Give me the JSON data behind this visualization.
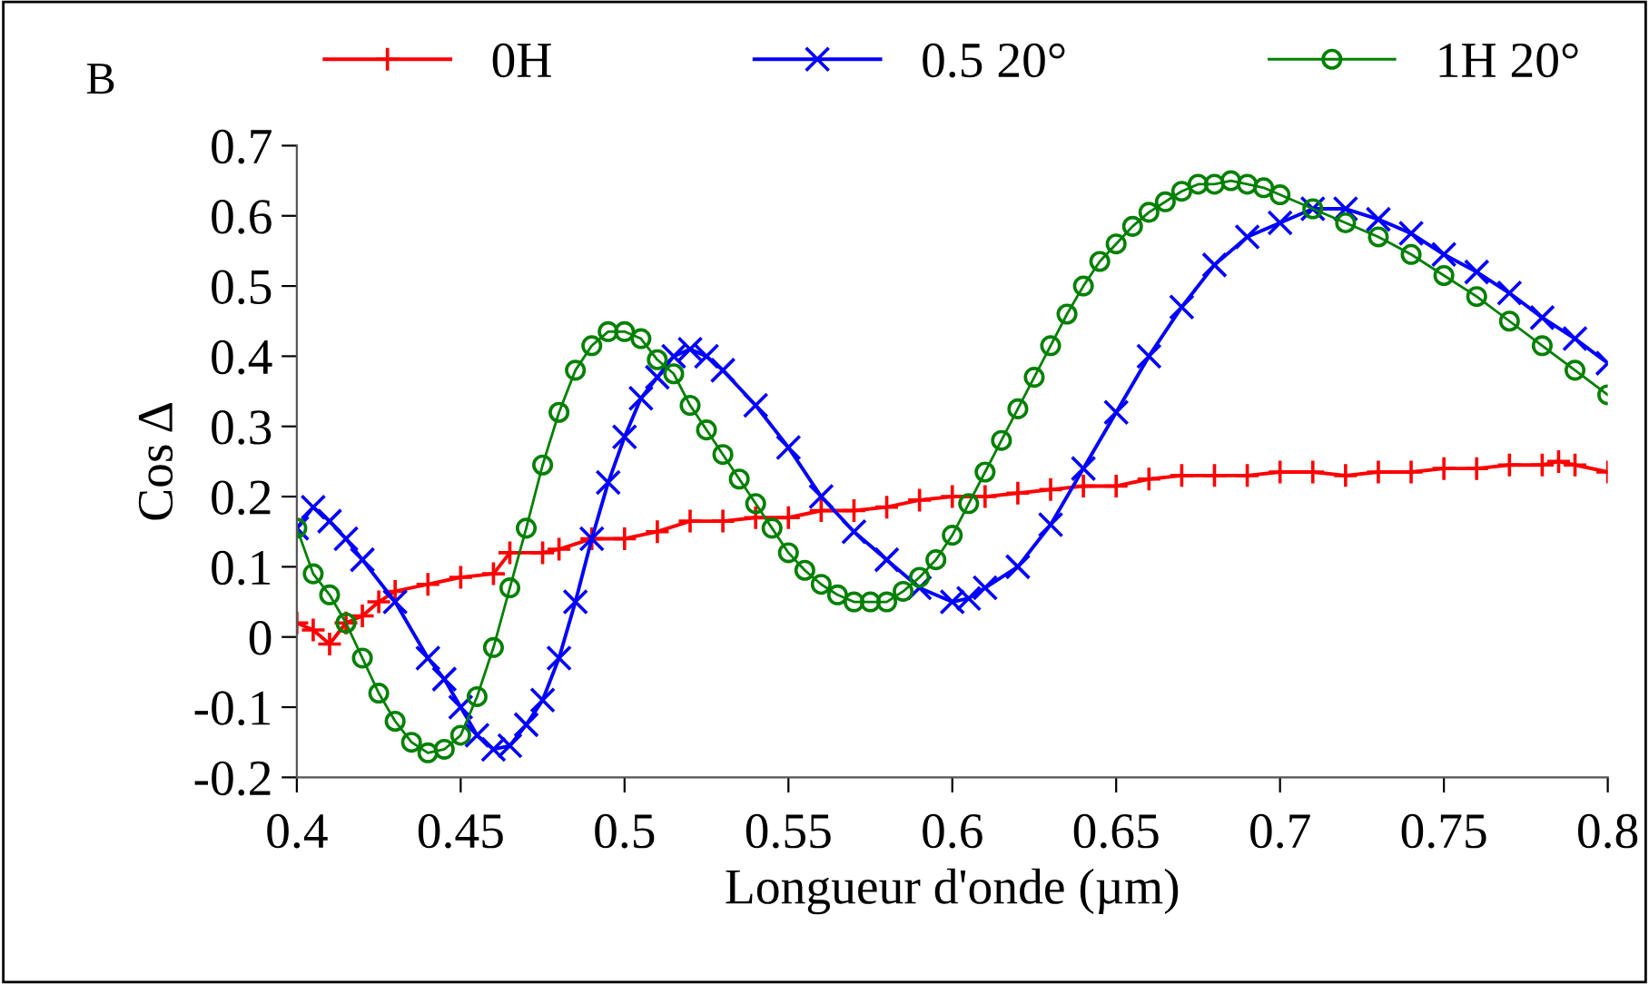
{
  "chart_data": {
    "type": "line",
    "xlabel": "Longueur d'onde (µm)",
    "ylabel": "Cos Δ",
    "annotations": [
      "B"
    ],
    "xlim": [
      0.4,
      0.8
    ],
    "xticks": [
      0.4,
      0.45,
      0.5,
      0.55,
      0.6,
      0.65,
      0.7,
      0.75,
      0.8
    ],
    "ylim": [
      -0.2,
      0.7
    ],
    "yticks": [
      -0.2,
      -0.1,
      0,
      0.1,
      0.2,
      0.3,
      0.4,
      0.5,
      0.6,
      0.7
    ],
    "grid": false,
    "legend": "top",
    "line_style": "solid",
    "series": [
      {
        "name": "0H",
        "color": "#ff0000",
        "marker": "plus",
        "x": [
          0.4,
          0.405,
          0.41,
          0.415,
          0.42,
          0.425,
          0.43,
          0.44,
          0.45,
          0.46,
          0.465,
          0.475,
          0.48,
          0.49,
          0.5,
          0.51,
          0.52,
          0.53,
          0.54,
          0.55,
          0.56,
          0.57,
          0.58,
          0.59,
          0.6,
          0.61,
          0.62,
          0.63,
          0.64,
          0.65,
          0.66,
          0.67,
          0.68,
          0.69,
          0.7,
          0.71,
          0.72,
          0.73,
          0.74,
          0.75,
          0.76,
          0.77,
          0.78,
          0.785,
          0.79,
          0.8
        ],
        "values": [
          0.02,
          0.01,
          -0.01,
          0.02,
          0.03,
          0.05,
          0.065,
          0.075,
          0.085,
          0.09,
          0.12,
          0.12,
          0.125,
          0.14,
          0.14,
          0.15,
          0.165,
          0.165,
          0.17,
          0.17,
          0.18,
          0.18,
          0.185,
          0.195,
          0.2,
          0.2,
          0.205,
          0.21,
          0.215,
          0.215,
          0.225,
          0.23,
          0.23,
          0.23,
          0.235,
          0.235,
          0.23,
          0.235,
          0.235,
          0.24,
          0.24,
          0.245,
          0.245,
          0.25,
          0.245,
          0.235
        ]
      },
      {
        "name": "0.5 20°",
        "color": "#0000ff",
        "marker": "cross",
        "x": [
          0.4,
          0.405,
          0.41,
          0.415,
          0.42,
          0.43,
          0.44,
          0.445,
          0.45,
          0.455,
          0.46,
          0.465,
          0.47,
          0.475,
          0.48,
          0.485,
          0.49,
          0.495,
          0.5,
          0.505,
          0.51,
          0.515,
          0.52,
          0.525,
          0.53,
          0.54,
          0.55,
          0.56,
          0.57,
          0.58,
          0.59,
          0.6,
          0.605,
          0.61,
          0.62,
          0.63,
          0.64,
          0.65,
          0.66,
          0.67,
          0.68,
          0.69,
          0.7,
          0.71,
          0.72,
          0.73,
          0.74,
          0.75,
          0.76,
          0.77,
          0.78,
          0.79,
          0.8
        ],
        "values": [
          0.155,
          0.185,
          0.165,
          0.14,
          0.11,
          0.05,
          -0.03,
          -0.06,
          -0.1,
          -0.14,
          -0.16,
          -0.155,
          -0.125,
          -0.09,
          -0.03,
          0.05,
          0.14,
          0.22,
          0.285,
          0.34,
          0.37,
          0.4,
          0.41,
          0.4,
          0.38,
          0.33,
          0.27,
          0.2,
          0.15,
          0.11,
          0.07,
          0.05,
          0.055,
          0.07,
          0.1,
          0.16,
          0.24,
          0.32,
          0.4,
          0.47,
          0.53,
          0.57,
          0.59,
          0.61,
          0.61,
          0.595,
          0.575,
          0.545,
          0.52,
          0.49,
          0.455,
          0.425,
          0.39
        ]
      },
      {
        "name": "1H 20°",
        "color": "#008000",
        "marker": "circle",
        "x": [
          0.4,
          0.405,
          0.41,
          0.415,
          0.42,
          0.425,
          0.43,
          0.435,
          0.44,
          0.445,
          0.45,
          0.455,
          0.46,
          0.465,
          0.47,
          0.475,
          0.48,
          0.485,
          0.49,
          0.495,
          0.5,
          0.505,
          0.51,
          0.515,
          0.52,
          0.525,
          0.53,
          0.535,
          0.54,
          0.545,
          0.55,
          0.555,
          0.56,
          0.565,
          0.57,
          0.575,
          0.58,
          0.585,
          0.59,
          0.595,
          0.6,
          0.605,
          0.61,
          0.615,
          0.62,
          0.625,
          0.63,
          0.635,
          0.64,
          0.645,
          0.65,
          0.655,
          0.66,
          0.665,
          0.67,
          0.675,
          0.68,
          0.685,
          0.69,
          0.695,
          0.7,
          0.71,
          0.72,
          0.73,
          0.74,
          0.75,
          0.76,
          0.77,
          0.78,
          0.79,
          0.8
        ],
        "values": [
          0.155,
          0.09,
          0.06,
          0.02,
          -0.03,
          -0.08,
          -0.12,
          -0.15,
          -0.165,
          -0.16,
          -0.14,
          -0.085,
          -0.015,
          0.07,
          0.155,
          0.245,
          0.32,
          0.38,
          0.415,
          0.435,
          0.435,
          0.425,
          0.395,
          0.375,
          0.33,
          0.295,
          0.26,
          0.225,
          0.19,
          0.155,
          0.12,
          0.095,
          0.075,
          0.06,
          0.05,
          0.05,
          0.05,
          0.065,
          0.085,
          0.11,
          0.145,
          0.19,
          0.235,
          0.28,
          0.325,
          0.37,
          0.415,
          0.46,
          0.5,
          0.535,
          0.56,
          0.585,
          0.605,
          0.62,
          0.635,
          0.645,
          0.645,
          0.65,
          0.645,
          0.64,
          0.63,
          0.61,
          0.59,
          0.57,
          0.545,
          0.515,
          0.485,
          0.45,
          0.415,
          0.38,
          0.345
        ]
      }
    ]
  }
}
